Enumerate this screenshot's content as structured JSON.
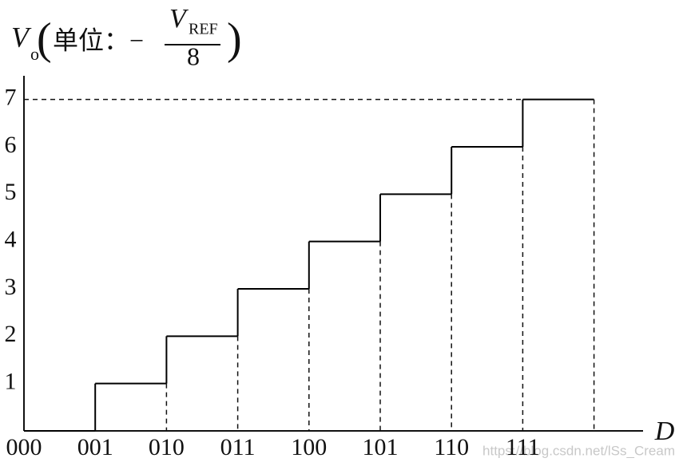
{
  "chart_data": {
    "type": "step",
    "y_label": {
      "symbol": "V",
      "subscript": "o",
      "unit_prefix": "单位：−",
      "unit_numerator": "V",
      "unit_numerator_subscript": "REF",
      "unit_denominator": "8"
    },
    "x_label": "D",
    "categories": [
      "000",
      "001",
      "010",
      "011",
      "100",
      "101",
      "110",
      "111"
    ],
    "values": [
      0,
      1,
      2,
      3,
      4,
      5,
      6,
      7
    ],
    "color": "#000000",
    "ylim": [
      0,
      7.5
    ],
    "yticks": [
      1,
      2,
      3,
      4,
      5,
      6,
      7
    ],
    "watermark": "https://blog.csdn.net/lSs_Cream"
  }
}
